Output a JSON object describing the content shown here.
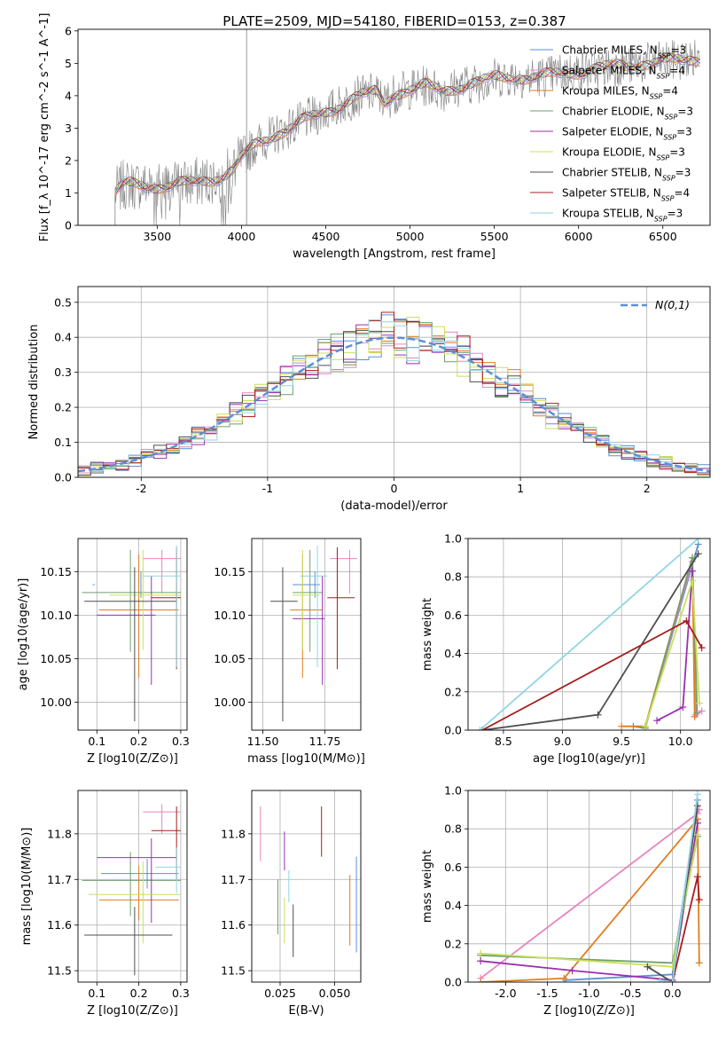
{
  "figure": {
    "title": "PLATE=2509, MJD=54180, FIBERID=0153, z=0.387"
  },
  "colors": {
    "chabrier_miles": "#5b8fd6",
    "salpeter_miles": "#e884c0",
    "kroupa_miles": "#e07d20",
    "chabrier_elodie": "#6f9f6f",
    "salpeter_elodie": "#9a2fb0",
    "kroupa_elodie": "#c9e05a",
    "chabrier_stelib": "#4f4f4f",
    "salpeter_stelib": "#a81c1c",
    "kroupa_stelib": "#8fd6e2",
    "observed": "#808080",
    "gaussian": "#5b8fd6"
  },
  "chart_data": [
    {
      "id": "spectrum",
      "type": "line",
      "title": "PLATE=2509, MJD=54180, FIBERID=0153, z=0.387",
      "xlabel": "wavelength [Angstrom, rest frame]",
      "ylabel": "Flux [f_λ 10^-17 erg cm^-2 s^-1 A^-1]",
      "xlim": [
        3030,
        6780
      ],
      "ylim": [
        0,
        6.05
      ],
      "xticks": [
        3500,
        4000,
        4500,
        5000,
        5500,
        6000,
        6500
      ],
      "yticks": [
        0,
        1,
        2,
        3,
        4,
        5,
        6
      ],
      "grid": false,
      "legend_position": "right",
      "observed_x_range": [
        3250,
        6720
      ],
      "model_anchor_x": [
        3250,
        3300,
        3400,
        3500,
        3600,
        3700,
        3800,
        3900,
        3950,
        4000,
        4100,
        4200,
        4300,
        4400,
        4500,
        4600,
        4700,
        4800,
        4850,
        4900,
        5000,
        5100,
        5200,
        5300,
        5400,
        5500,
        5600,
        5700,
        5800,
        5900,
        6000,
        6200,
        6400,
        6600,
        6720
      ],
      "model_anchor_y": [
        1.0,
        1.25,
        1.25,
        1.2,
        1.25,
        1.3,
        1.4,
        1.55,
        1.7,
        2.1,
        2.55,
        2.8,
        3.05,
        3.3,
        3.5,
        3.75,
        4.0,
        4.1,
        3.8,
        4.05,
        4.2,
        4.3,
        4.15,
        4.3,
        4.4,
        4.55,
        4.6,
        4.55,
        4.6,
        4.7,
        4.75,
        4.9,
        5.0,
        5.1,
        5.15
      ],
      "series": [
        {
          "name": "Chabrier MILES, N_SSP=3",
          "color": "#5b8fd6"
        },
        {
          "name": "Salpeter MILES, N_SSP=4",
          "color": "#e884c0"
        },
        {
          "name": "Kroupa MILES, N_SSP=4",
          "color": "#e07d20"
        },
        {
          "name": "Chabrier ELODIE, N_SSP=3",
          "color": "#6f9f6f"
        },
        {
          "name": "Salpeter ELODIE, N_SSP=3",
          "color": "#9a2fb0"
        },
        {
          "name": "Kroupa ELODIE, N_SSP=3",
          "color": "#c9e05a"
        },
        {
          "name": "Chabrier STELIB, N_SSP=3",
          "color": "#4f4f4f"
        },
        {
          "name": "Salpeter STELIB, N_SSP=4",
          "color": "#a81c1c"
        },
        {
          "name": "Kroupa STELIB, N_SSP=3",
          "color": "#8fd6e2"
        }
      ]
    },
    {
      "id": "residuals",
      "type": "line",
      "xlabel": "(data-model)/error",
      "ylabel": "Normed distribution",
      "xlim": [
        -2.5,
        2.5
      ],
      "ylim": [
        0,
        0.545
      ],
      "xticks": [
        -2,
        -1,
        0,
        1,
        2
      ],
      "yticks": [
        0.0,
        0.1,
        0.2,
        0.3,
        0.4,
        0.5
      ],
      "grid": true,
      "legend_position": "top-right",
      "gaussian_label": "N(0,1)",
      "bin_width": 0.1,
      "histogram_colors": [
        "#5b8fd6",
        "#e884c0",
        "#e07d20",
        "#6f9f6f",
        "#9a2fb0",
        "#c9e05a",
        "#4f4f4f",
        "#a81c1c",
        "#8fd6e2"
      ]
    },
    {
      "id": "age-vs-Z",
      "type": "scatter",
      "xlabel": "Z [log10(Z/Z⊙)]",
      "ylabel": "age  [log10(age/yr)]",
      "xlim": [
        0.055,
        0.315
      ],
      "ylim": [
        9.968,
        10.188
      ],
      "xticks": [
        0.1,
        0.2,
        0.3
      ],
      "yticks": [
        10.0,
        10.05,
        10.1,
        10.15
      ],
      "grid": true,
      "points": [
        {
          "x": 0.205,
          "xerr": [
            0.09,
            0.095
          ],
          "y": 10.135,
          "yerr": [
            10.12,
            10.15
          ],
          "color": "#5b8fd6"
        },
        {
          "x": 0.255,
          "xerr": [
            0.21,
            0.3
          ],
          "y": 10.165,
          "yerr": [
            10.125,
            10.175
          ],
          "color": "#e884c0"
        },
        {
          "x": 0.2,
          "xerr": [
            0.105,
            0.295
          ],
          "y": 10.106,
          "yerr": [
            10.028,
            10.17
          ],
          "color": "#e07d20"
        },
        {
          "x": 0.18,
          "xerr": [
            0.065,
            0.3
          ],
          "y": 10.126,
          "yerr": [
            10.058,
            10.175
          ],
          "color": "#6f9f6f"
        },
        {
          "x": 0.23,
          "xerr": [
            0.1,
            0.24
          ],
          "y": 10.1,
          "yerr": [
            10.02,
            10.145
          ],
          "color": "#9a2fb0"
        },
        {
          "x": 0.21,
          "xerr": [
            0.13,
            0.3
          ],
          "y": 10.123,
          "yerr": [
            10.06,
            10.175
          ],
          "color": "#c9e05a"
        },
        {
          "x": 0.19,
          "xerr": [
            0.07,
            0.29
          ],
          "y": 10.116,
          "yerr": [
            9.978,
            10.155
          ],
          "color": "#4f4f4f"
        },
        {
          "x": 0.29,
          "xerr": [
            0.23,
            0.3
          ],
          "y": 10.12,
          "yerr": [
            10.038,
            10.178
          ],
          "color": "#a81c1c"
        },
        {
          "x": 0.29,
          "xerr": [
            0.21,
            0.3
          ],
          "y": 10.145,
          "yerr": [
            10.04,
            10.18
          ],
          "color": "#8fd6e2"
        }
      ]
    },
    {
      "id": "age-vs-mass",
      "type": "scatter",
      "xlabel": "mass [log10(M/M⊙)]",
      "ylabel": "",
      "xlim": [
        11.455,
        11.895
      ],
      "ylim": [
        9.968,
        10.188
      ],
      "xticks": [
        11.5,
        11.75
      ],
      "yticks": [
        10.0,
        10.05,
        10.1,
        10.15
      ],
      "grid": true,
      "points": [
        {
          "x": 11.71,
          "xerr": [
            11.62,
            11.73
          ],
          "y": 10.135,
          "yerr": [
            10.12,
            10.15
          ],
          "color": "#5b8fd6"
        },
        {
          "x": 11.85,
          "xerr": [
            11.77,
            11.88
          ],
          "y": 10.165,
          "yerr": [
            10.125,
            10.175
          ],
          "color": "#e884c0"
        },
        {
          "x": 11.66,
          "xerr": [
            11.61,
            11.74
          ],
          "y": 10.106,
          "yerr": [
            10.028,
            10.17
          ],
          "color": "#e07d20"
        },
        {
          "x": 11.69,
          "xerr": [
            11.62,
            11.74
          ],
          "y": 10.126,
          "yerr": [
            10.058,
            10.175
          ],
          "color": "#6f9f6f"
        },
        {
          "x": 11.74,
          "xerr": [
            11.62,
            11.75
          ],
          "y": 10.096,
          "yerr": [
            10.02,
            10.145
          ],
          "color": "#9a2fb0"
        },
        {
          "x": 11.66,
          "xerr": [
            11.62,
            11.73
          ],
          "y": 10.123,
          "yerr": [
            10.06,
            10.175
          ],
          "color": "#c9e05a"
        },
        {
          "x": 11.58,
          "xerr": [
            11.53,
            11.64
          ],
          "y": 10.116,
          "yerr": [
            9.978,
            10.155
          ],
          "color": "#4f4f4f"
        },
        {
          "x": 11.8,
          "xerr": [
            11.76,
            11.87
          ],
          "y": 10.12,
          "yerr": [
            10.038,
            10.178
          ],
          "color": "#a81c1c"
        },
        {
          "x": 11.72,
          "xerr": [
            11.65,
            11.76
          ],
          "y": 10.145,
          "yerr": [
            10.04,
            10.18
          ],
          "color": "#8fd6e2"
        }
      ]
    },
    {
      "id": "weight-vs-age",
      "type": "line",
      "xlabel": "age  [log10(age/yr)]",
      "ylabel": "mass weight",
      "xlim": [
        8.2,
        10.25
      ],
      "ylim": [
        0,
        1.0
      ],
      "xticks": [
        8.5,
        9.0,
        9.5,
        10.0
      ],
      "yticks": [
        0.0,
        0.2,
        0.4,
        0.6,
        0.8,
        1.0
      ],
      "grid": true,
      "series": [
        {
          "color": "#5b8fd6",
          "x": [
            9.6,
            9.7,
            10.15
          ],
          "y": [
            0.02,
            0.01,
            0.97
          ]
        },
        {
          "color": "#e884c0",
          "x": [
            9.7,
            10.1,
            10.13,
            10.18
          ],
          "y": [
            0.01,
            0.88,
            0.08,
            0.1
          ]
        },
        {
          "color": "#e07d20",
          "x": [
            9.5,
            9.7,
            10.1,
            10.12
          ],
          "y": [
            0.02,
            0.02,
            0.9,
            0.07
          ]
        },
        {
          "color": "#6f9f6f",
          "x": [
            9.7,
            10.1,
            10.14
          ],
          "y": [
            0.01,
            0.9,
            0.09
          ]
        },
        {
          "color": "#9a2fb0",
          "x": [
            9.8,
            10.02,
            10.1
          ],
          "y": [
            0.05,
            0.12,
            0.83
          ]
        },
        {
          "color": "#c9e05a",
          "x": [
            9.7,
            10.1,
            10.16
          ],
          "y": [
            0.02,
            0.78,
            0.14
          ]
        },
        {
          "color": "#4f4f4f",
          "x": [
            8.32,
            9.3,
            10.15
          ],
          "y": [
            0.0,
            0.08,
            0.92
          ]
        },
        {
          "color": "#a81c1c",
          "x": [
            8.32,
            10.05,
            10.18
          ],
          "y": [
            0.0,
            0.57,
            0.43
          ]
        },
        {
          "color": "#8fd6e2",
          "x": [
            8.3,
            10.15
          ],
          "y": [
            0.0,
            1.0
          ]
        }
      ]
    },
    {
      "id": "mass-vs-Z",
      "type": "scatter",
      "xlabel": "Z [log10(Z/Z⊙)]",
      "ylabel": "mass [log10(M/M⊙)]",
      "xlim": [
        0.055,
        0.315
      ],
      "ylim": [
        11.475,
        11.895
      ],
      "xticks": [
        0.1,
        0.2,
        0.3
      ],
      "yticks": [
        11.5,
        11.6,
        11.7,
        11.8
      ],
      "grid": true,
      "points": [
        {
          "x": 0.22,
          "xerr": [
            0.11,
            0.295
          ],
          "y": 11.713,
          "yerr": [
            11.68,
            11.745
          ],
          "color": "#5b8fd6"
        },
        {
          "x": 0.255,
          "xerr": [
            0.21,
            0.3
          ],
          "y": 11.848,
          "yerr": [
            11.8,
            11.865
          ],
          "color": "#e884c0"
        },
        {
          "x": 0.2,
          "xerr": [
            0.105,
            0.295
          ],
          "y": 11.655,
          "yerr": [
            11.61,
            11.73
          ],
          "color": "#e07d20"
        },
        {
          "x": 0.18,
          "xerr": [
            0.065,
            0.3
          ],
          "y": 11.698,
          "yerr": [
            11.62,
            11.76
          ],
          "color": "#6f9f6f"
        },
        {
          "x": 0.23,
          "xerr": [
            0.1,
            0.29
          ],
          "y": 11.748,
          "yerr": [
            11.605,
            11.79
          ],
          "color": "#9a2fb0"
        },
        {
          "x": 0.21,
          "xerr": [
            0.08,
            0.3
          ],
          "y": 11.667,
          "yerr": [
            11.56,
            11.74
          ],
          "color": "#c9e05a"
        },
        {
          "x": 0.19,
          "xerr": [
            0.07,
            0.28
          ],
          "y": 11.578,
          "yerr": [
            11.49,
            11.64
          ],
          "color": "#4f4f4f"
        },
        {
          "x": 0.29,
          "xerr": [
            0.23,
            0.3
          ],
          "y": 11.807,
          "yerr": [
            11.7,
            11.86
          ],
          "color": "#a81c1c"
        },
        {
          "x": 0.29,
          "xerr": [
            0.24,
            0.3
          ],
          "y": 11.727,
          "yerr": [
            11.67,
            11.77
          ],
          "color": "#8fd6e2"
        }
      ]
    },
    {
      "id": "mass-vs-ebv",
      "type": "scatter",
      "xlabel": "E(B-V)",
      "ylabel": "",
      "xlim": [
        0.012,
        0.062
      ],
      "ylim": [
        11.475,
        11.895
      ],
      "xticks": [
        0.025,
        0.05
      ],
      "yticks": [
        11.5,
        11.6,
        11.7,
        11.8
      ],
      "grid": true,
      "points": [
        {
          "x": 0.06,
          "yerr": [
            11.54,
            11.75
          ],
          "color": "#5b8fd6"
        },
        {
          "x": 0.016,
          "yerr": [
            11.74,
            11.86
          ],
          "color": "#e884c0"
        },
        {
          "x": 0.057,
          "yerr": [
            11.555,
            11.71
          ],
          "color": "#e07d20"
        },
        {
          "x": 0.024,
          "yerr": [
            11.58,
            11.7
          ],
          "color": "#6f9f6f"
        },
        {
          "x": 0.027,
          "yerr": [
            11.72,
            11.805
          ],
          "color": "#9a2fb0"
        },
        {
          "x": 0.027,
          "yerr": [
            11.56,
            11.66
          ],
          "color": "#c9e05a"
        },
        {
          "x": 0.031,
          "yerr": [
            11.53,
            11.645
          ],
          "color": "#4f4f4f"
        },
        {
          "x": 0.044,
          "yerr": [
            11.75,
            11.86
          ],
          "color": "#a81c1c"
        },
        {
          "x": 0.029,
          "yerr": [
            11.65,
            11.72
          ],
          "color": "#8fd6e2"
        }
      ]
    },
    {
      "id": "weight-vs-Z",
      "type": "line",
      "xlabel": "Z [log10(Z/Z⊙)]",
      "ylabel": "mass weight",
      "xlim": [
        -2.45,
        0.45
      ],
      "ylim": [
        0,
        1.0
      ],
      "xticks": [
        -2.0,
        -1.5,
        -1.0,
        -0.5,
        0.0
      ],
      "yticks": [
        0.0,
        0.2,
        0.4,
        0.6,
        0.8,
        1.0
      ],
      "grid": true,
      "series": [
        {
          "color": "#5b8fd6",
          "x": [
            -1.28,
            0.0,
            0.3
          ],
          "y": [
            0.01,
            0.04,
            0.95
          ]
        },
        {
          "color": "#e884c0",
          "x": [
            -2.3,
            0.3,
            0.32
          ],
          "y": [
            0.02,
            0.88,
            0.9
          ]
        },
        {
          "color": "#e07d20",
          "x": [
            -2.3,
            -1.3,
            0.3,
            0.32
          ],
          "y": [
            0.0,
            0.02,
            0.85,
            0.1
          ]
        },
        {
          "color": "#6f9f6f",
          "x": [
            -2.3,
            0.0,
            0.3
          ],
          "y": [
            0.14,
            0.1,
            0.76
          ]
        },
        {
          "color": "#9a2fb0",
          "x": [
            -2.3,
            -1.2,
            0.0,
            0.3
          ],
          "y": [
            0.11,
            0.06,
            0.01,
            0.83
          ]
        },
        {
          "color": "#c9e05a",
          "x": [
            -2.3,
            0.0,
            0.3
          ],
          "y": [
            0.15,
            0.08,
            0.77
          ]
        },
        {
          "color": "#4f4f4f",
          "x": [
            -0.3,
            0.0,
            0.3
          ],
          "y": [
            0.08,
            0.0,
            0.92
          ]
        },
        {
          "color": "#a81c1c",
          "x": [
            0.0,
            0.3,
            0.32
          ],
          "y": [
            0.0,
            0.55,
            0.43
          ]
        },
        {
          "color": "#8fd6e2",
          "x": [
            -0.15,
            0.0,
            0.3
          ],
          "y": [
            0.01,
            0.0,
            0.98
          ]
        }
      ]
    }
  ]
}
